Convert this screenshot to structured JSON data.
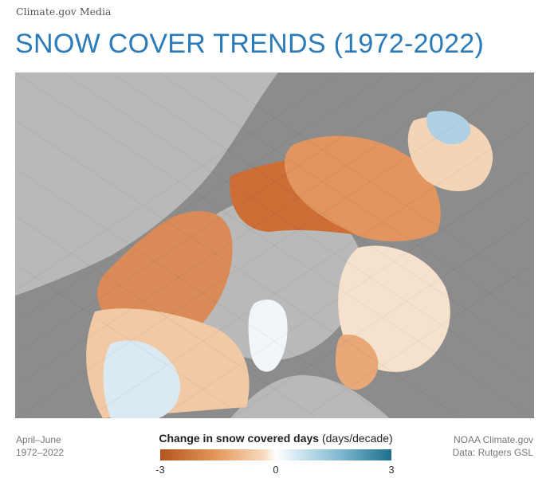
{
  "header": {
    "source": "Climate.gov Media",
    "title": "SNOW COVER TRENDS (1972-2022)"
  },
  "footer": {
    "period_months": "April–June",
    "period_years": "1972–2022",
    "credit_org": "NOAA Climate.gov",
    "credit_data": "Data: Rutgers GSL"
  },
  "legend": {
    "title": "Change in snow covered days",
    "units": "(days/decade)",
    "min_label": "-3",
    "mid_label": "0",
    "max_label": "3",
    "range": [
      -3,
      3
    ],
    "colors": {
      "negative": "#b3541e",
      "neutral": "#ffffff",
      "positive": "#1b6f8a"
    }
  },
  "map": {
    "projection": "polar",
    "colors": {
      "land": "#8a8a8a",
      "ocean": "#b8b8b8",
      "greenland": "#f4f8fb"
    }
  }
}
